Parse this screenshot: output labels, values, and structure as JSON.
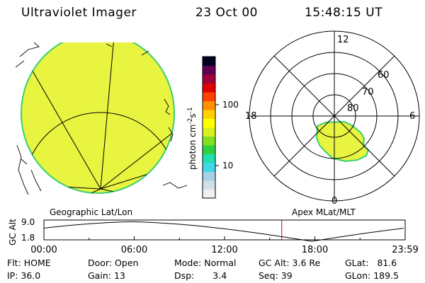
{
  "header": {
    "instrument": "Ultraviolet Imager",
    "date": "23 Oct 00",
    "time": "15:48:15 UT"
  },
  "colorbar": {
    "label_prefix": "photon cm",
    "label_exp1": "-2",
    "label_mid": "s",
    "label_exp2": "-1",
    "ticks": [
      {
        "label": "100",
        "value": 100
      },
      {
        "label": "10",
        "value": 10
      }
    ],
    "colors": [
      "#f0f0f0",
      "#cfe0e8",
      "#a8d0e6",
      "#40d8e8",
      "#20e0b0",
      "#30d040",
      "#80e020",
      "#d8f020",
      "#ffff00",
      "#ffd000",
      "#ff9000",
      "#ff4000",
      "#e00000",
      "#a0003a",
      "#600050",
      "#000020"
    ]
  },
  "left_panel": {
    "label": "Geographic Lat/Lon",
    "fill_color": "#e8f440",
    "edge_color": "#38d070"
  },
  "right_panel": {
    "label": "Apex MLat/MLT",
    "lat_labels": [
      "80",
      "70",
      "60"
    ],
    "mlt_labels": {
      "top": "12",
      "left": "18",
      "right": "6",
      "bottom": "0"
    }
  },
  "orbit": {
    "ylabel": "GC Alt",
    "ytick_labels": [
      "9.0",
      "1.8"
    ],
    "y_values": [
      9.0,
      1.8
    ],
    "time_ticks": [
      "00:00",
      "06:00",
      "12:00",
      "18:00",
      "23:59"
    ],
    "current_time": "15:48",
    "marker_color": "#cc0000"
  },
  "footer": {
    "row1": {
      "flt_label": "Flt:",
      "flt_value": "HOME",
      "door_label": "Door:",
      "door_value": "Open",
      "mode_label": "Mode:",
      "mode_value": "Normal",
      "gcalt_label": "GC Alt:",
      "gcalt_value": "3.6 Re",
      "glat_label": "GLat:",
      "glat_value": "81.6"
    },
    "row2": {
      "ip_label": "IP:",
      "ip_value": "36.0",
      "gain_label": "Gain:",
      "gain_value": "13",
      "dsp_label": "Dsp:",
      "dsp_value": "3.4",
      "seq_label": "Seq:",
      "seq_value": "39",
      "glon_label": "GLon:",
      "glon_value": "189.5"
    }
  }
}
